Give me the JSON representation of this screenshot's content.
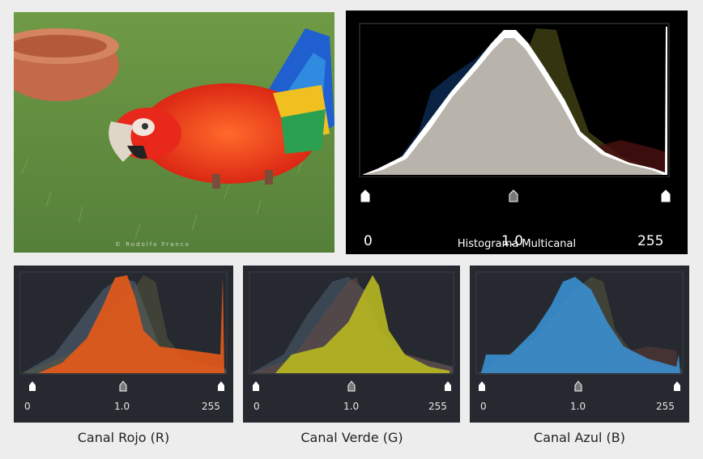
{
  "photo": {
    "watermark": "© Rodolfo Franco"
  },
  "main_histogram": {
    "caption": "Histograma Multicanal",
    "tick_min": "0",
    "tick_mid": "1.0",
    "tick_max": "255"
  },
  "channels": [
    {
      "caption": "Canal Rojo (R)",
      "tick_min": "0",
      "tick_mid": "1.0",
      "tick_max": "255",
      "color": "#e85a1a"
    },
    {
      "caption": "Canal Verde (G)",
      "tick_min": "0",
      "tick_mid": "1.0",
      "tick_max": "255",
      "color": "#b8b820"
    },
    {
      "caption": "Canal Azul (B)",
      "tick_min": "0",
      "tick_mid": "1.0",
      "tick_max": "255",
      "color": "#3a8fd0"
    }
  ]
}
